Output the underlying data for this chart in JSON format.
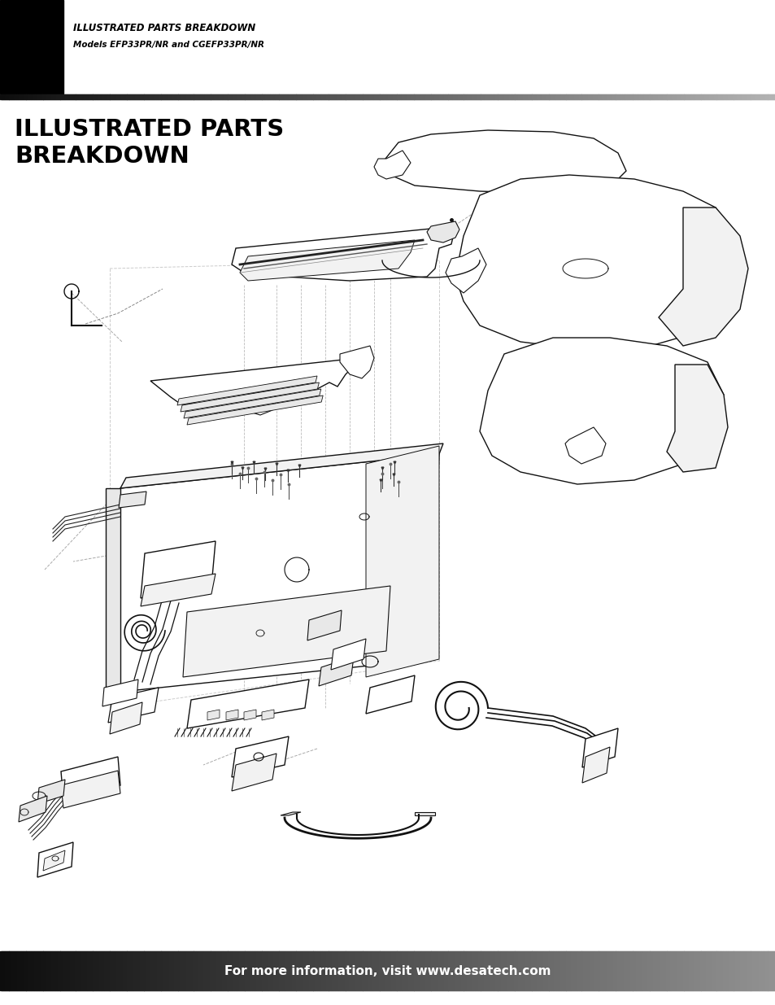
{
  "header_title": "ILLUSTRATED PARTS BREAKDOWN",
  "header_subtitle": "Models EFP33PR/NR and CGEFP33PR/NR",
  "main_title_line1": "ILLUSTRATED PARTS",
  "main_title_line2": "BREAKDOWN",
  "footer_text": "For more information, visit www.desatech.com",
  "bg_color": "#ffffff",
  "header_bg": "#000000",
  "footer_text_color": "#ffffff",
  "main_title_color": "#000000",
  "page_width": 9.54,
  "page_height": 12.35,
  "dpi": 100
}
